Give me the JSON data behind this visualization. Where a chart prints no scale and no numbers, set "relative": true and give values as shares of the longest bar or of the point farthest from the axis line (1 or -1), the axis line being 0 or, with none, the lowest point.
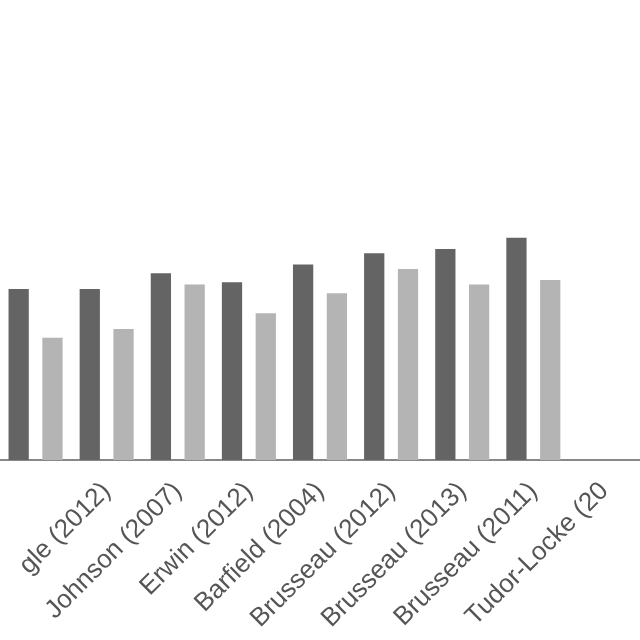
{
  "chart_data": {
    "type": "bar",
    "relative": true,
    "categories": [
      null,
      "gle (2012)",
      "Johnson (2007)",
      "Erwin (2012)",
      "Barfield (2004)",
      "Brusseau (2012)",
      "Brusseau (2013)",
      "Brusseau (2011)",
      "Tudor-Locke (20"
    ],
    "series": [
      {
        "color": "#646464",
        "values": [
          0.77,
          0.77,
          0.84,
          0.8,
          0.88,
          0.93,
          0.95,
          1.0,
          null
        ]
      },
      {
        "color": "#b4b4b4",
        "values": [
          0.55,
          0.59,
          0.79,
          0.66,
          0.75,
          0.86,
          0.79,
          0.81,
          null
        ]
      }
    ],
    "grid": false,
    "legend": false
  }
}
